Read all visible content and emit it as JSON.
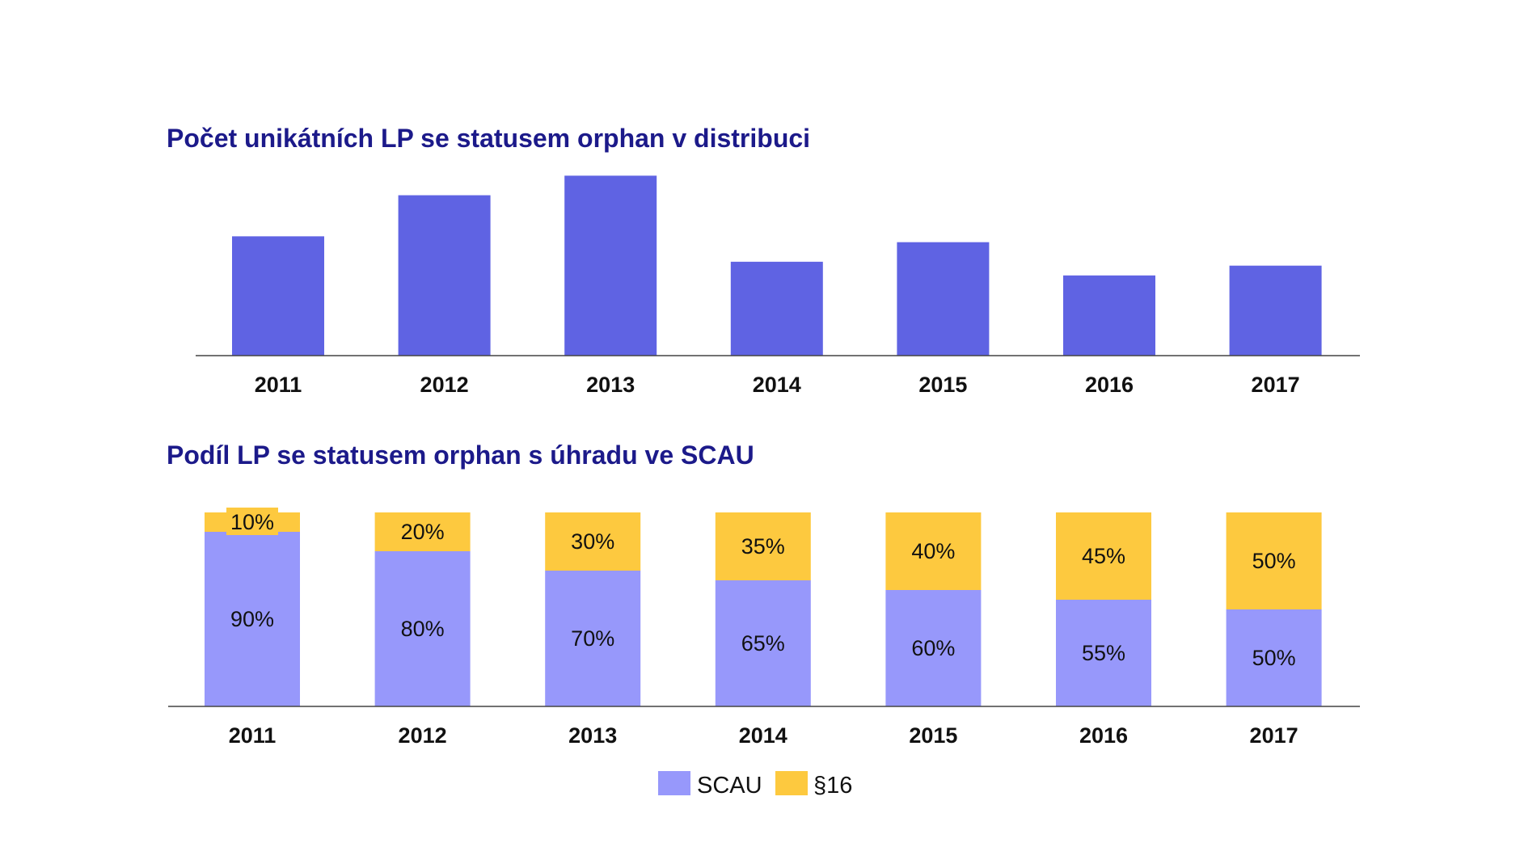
{
  "chart_data": [
    {
      "type": "bar",
      "title": "Počet unikátních LP se statusem orphan v distribuci",
      "categories": [
        "2011",
        "2012",
        "2013",
        "2014",
        "2015",
        "2016",
        "2017"
      ],
      "values": [
        61,
        82,
        92,
        48,
        58,
        41,
        46
      ],
      "ylim": [
        0,
        100
      ],
      "xlabel": "",
      "ylabel": "",
      "grid": false,
      "colors": {
        "bar": "#5f63e3",
        "title": "#1c1a8a",
        "axis": "#444444"
      }
    },
    {
      "type": "bar",
      "stacked": true,
      "title": "Podíl LP se statusem orphan s úhradu ve SCAU",
      "categories": [
        "2011",
        "2012",
        "2013",
        "2014",
        "2015",
        "2016",
        "2017"
      ],
      "series": [
        {
          "name": "SCAU",
          "values": [
            90,
            80,
            70,
            65,
            60,
            55,
            50
          ],
          "labels": [
            "90%",
            "80%",
            "70%",
            "65%",
            "60%",
            "55%",
            "50%"
          ],
          "color": "#9798fb"
        },
        {
          "name": "§16",
          "values": [
            10,
            20,
            30,
            35,
            40,
            45,
            50
          ],
          "labels": [
            "10%",
            "20%",
            "30%",
            "35%",
            "40%",
            "45%",
            "50%"
          ],
          "color": "#fdc93f"
        }
      ],
      "ylim": [
        0,
        100
      ],
      "xlabel": "",
      "ylabel": "",
      "grid": false,
      "legend_position": "bottom-center",
      "colors": {
        "title": "#1c1a8a",
        "axis": "#444444"
      }
    }
  ]
}
